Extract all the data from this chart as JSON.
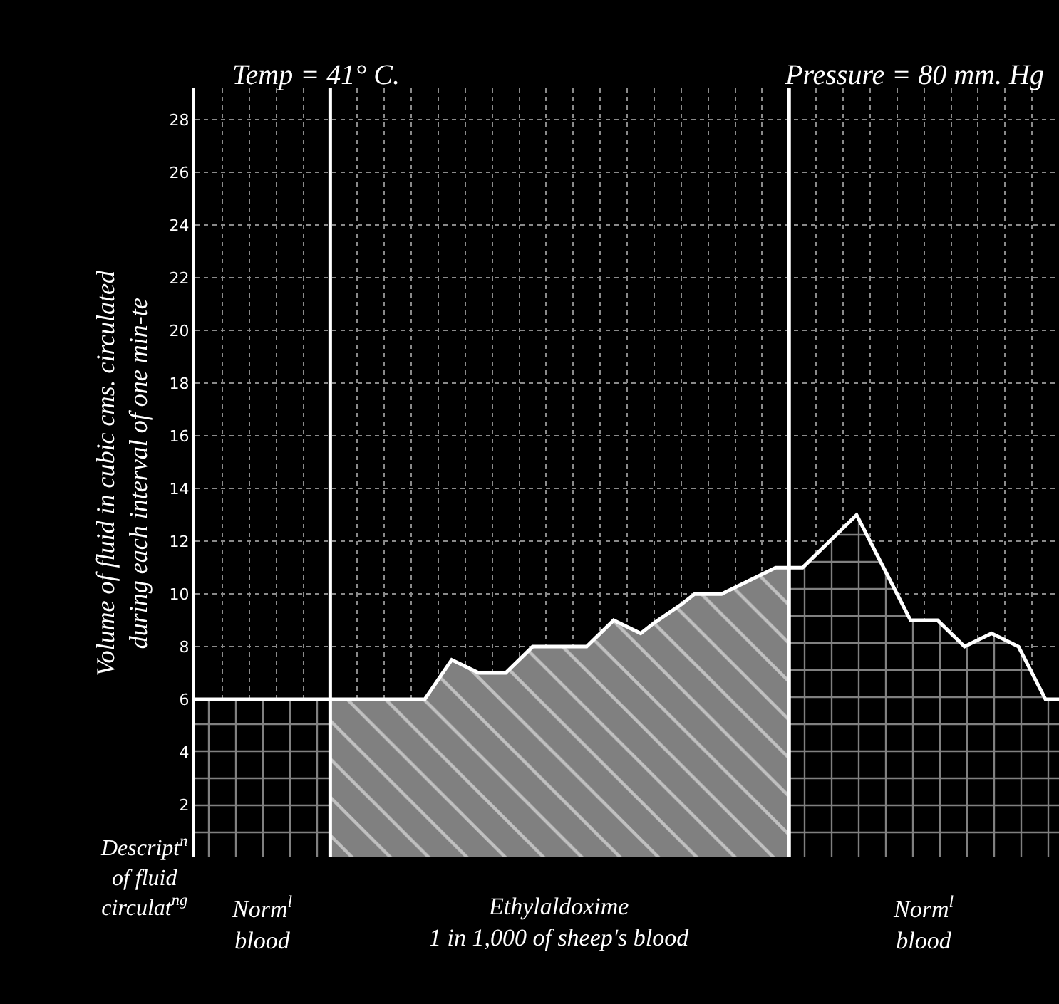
{
  "chart_data": {
    "type": "area",
    "title": "Temp = 41° C.",
    "subtitle": "Pressure = 80 mm. Hg",
    "ylabel": "Volume of fluid in cubic cms. circulated\nduring each interval of one min-te",
    "legend_title": "Descript$^{n}$\nof fluid\ncirculat$^{ng}$",
    "categories": [
      null,
      null,
      null,
      null,
      null,
      null,
      null,
      null,
      null,
      null,
      null,
      null,
      null,
      null,
      null,
      null,
      null,
      null,
      null,
      null,
      null,
      null,
      null,
      null,
      null,
      null,
      null,
      null,
      null,
      null,
      null,
      null,
      null,
      null,
      null,
      null,
      null,
      null,
      null,
      null,
      null,
      null,
      null,
      null,
      null,
      null,
      null,
      null,
      null,
      null,
      null,
      null,
      null,
      null,
      null,
      null,
      null,
      null,
      null,
      null,
      null,
      null,
      null,
      null,
      null
    ],
    "series": [
      {
        "name": "Norm$^{l}$\nblood",
        "color": "#000000",
        "values": [
          6,
          6,
          6,
          6,
          6,
          6,
          6,
          6,
          6,
          6,
          6,
          null,
          null,
          null,
          null,
          null,
          null,
          null,
          null,
          null,
          null,
          null,
          null,
          null,
          null,
          null,
          null,
          null,
          null,
          null,
          null,
          null,
          null,
          null,
          null,
          null,
          null,
          null,
          null,
          null,
          null,
          null,
          null,
          null,
          null,
          null,
          null,
          null,
          null,
          null,
          null,
          null,
          null,
          null,
          null,
          null,
          null,
          null,
          null,
          null,
          null,
          null,
          null,
          null,
          null
        ]
      },
      {
        "name": "Ethylaldoxime\n1 in 1,000 of sheep's blood",
        "color": "#808080",
        "values": [
          null,
          null,
          null,
          null,
          null,
          null,
          null,
          null,
          null,
          null,
          6,
          6,
          6,
          6,
          6,
          6,
          6,
          6,
          6.75,
          7.5,
          7.25,
          7,
          7,
          7,
          7.5,
          8,
          8,
          8,
          8,
          8,
          8.5,
          9,
          8.75,
          8.5,
          8.9,
          9.25,
          9.6,
          10,
          10,
          10,
          10.25,
          10.5,
          10.75,
          11,
          11,
          null,
          null,
          null,
          null,
          null,
          null,
          null,
          null,
          null,
          null,
          null,
          null,
          null,
          null,
          null,
          null,
          null,
          null,
          null,
          null
        ]
      },
      {
        "name": "Norm$^{l}$\nblood",
        "color": "#000000",
        "values": [
          null,
          null,
          null,
          null,
          null,
          null,
          null,
          null,
          null,
          null,
          null,
          null,
          null,
          null,
          null,
          null,
          null,
          null,
          null,
          null,
          null,
          null,
          null,
          null,
          null,
          null,
          null,
          null,
          null,
          null,
          null,
          null,
          null,
          null,
          null,
          null,
          null,
          null,
          null,
          null,
          null,
          null,
          null,
          null,
          11,
          11,
          11.5,
          12,
          12.5,
          13,
          12,
          11,
          10,
          9,
          9,
          9,
          8.5,
          8,
          8.25,
          8.5,
          8.25,
          8,
          7,
          6,
          6
        ]
      }
    ],
    "ylim": [
      0,
      29.2
    ],
    "yticks": [
      2,
      4,
      6,
      8,
      10,
      12,
      14,
      16,
      18,
      20,
      22,
      24,
      26,
      28
    ],
    "grid": true,
    "tick_labels": "y"
  }
}
